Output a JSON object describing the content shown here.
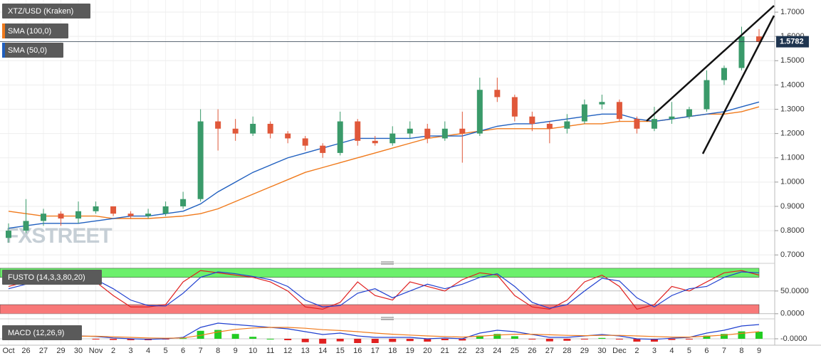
{
  "chart_data": [
    {
      "type": "candlestick",
      "title": "XTZ/USD (Kraken)",
      "watermark": "FXSTREET",
      "categories": [
        "Oct",
        "26",
        "27",
        "29",
        "30",
        "Nov",
        "2",
        "3",
        "4",
        "5",
        "6",
        "7",
        "8",
        "9",
        "10",
        "11",
        "12",
        "13",
        "14",
        "15",
        "16",
        "17",
        "18",
        "19",
        "20",
        "21",
        "22",
        "23",
        "24",
        "25",
        "26",
        "27",
        "28",
        "29",
        "30",
        "Dec",
        "2",
        "3",
        "4",
        "5",
        "6",
        "7",
        "8",
        "9"
      ],
      "open": [
        0.77,
        0.8,
        0.84,
        0.87,
        0.85,
        0.88,
        0.9,
        0.87,
        0.86,
        0.87,
        0.9,
        0.93,
        1.25,
        1.22,
        1.2,
        1.24,
        1.2,
        1.18,
        1.15,
        1.12,
        1.25,
        1.17,
        1.16,
        1.2,
        1.22,
        1.18,
        1.22,
        1.2,
        1.38,
        1.35,
        1.27,
        1.24,
        1.22,
        1.25,
        1.32,
        1.33,
        1.26,
        1.22,
        1.26,
        1.27,
        1.3,
        1.42,
        1.47,
        1.6
      ],
      "high": [
        0.83,
        0.93,
        0.89,
        0.88,
        0.92,
        0.92,
        0.9,
        0.88,
        0.89,
        0.92,
        0.96,
        1.3,
        1.3,
        1.26,
        1.27,
        1.25,
        1.21,
        1.19,
        1.16,
        1.29,
        1.26,
        1.19,
        1.23,
        1.25,
        1.24,
        1.25,
        1.29,
        1.43,
        1.43,
        1.36,
        1.29,
        1.25,
        1.28,
        1.34,
        1.36,
        1.34,
        1.27,
        1.31,
        1.33,
        1.31,
        1.46,
        1.48,
        1.64,
        1.63
      ],
      "low": [
        0.75,
        0.79,
        0.82,
        0.82,
        0.83,
        0.87,
        0.86,
        0.85,
        0.85,
        0.86,
        0.89,
        0.92,
        1.13,
        1.17,
        1.19,
        1.18,
        1.16,
        1.13,
        1.1,
        1.11,
        1.15,
        1.15,
        1.15,
        1.18,
        1.16,
        1.17,
        1.08,
        1.19,
        1.33,
        1.25,
        1.21,
        1.16,
        1.2,
        1.24,
        1.3,
        1.25,
        1.2,
        1.21,
        1.24,
        1.26,
        1.29,
        1.4,
        1.46,
        1.56
      ],
      "close": [
        0.8,
        0.84,
        0.87,
        0.85,
        0.88,
        0.9,
        0.87,
        0.86,
        0.87,
        0.9,
        0.93,
        1.25,
        1.22,
        1.2,
        1.24,
        1.2,
        1.18,
        1.15,
        1.12,
        1.25,
        1.17,
        1.16,
        1.2,
        1.22,
        1.18,
        1.22,
        1.2,
        1.38,
        1.35,
        1.27,
        1.24,
        1.22,
        1.25,
        1.32,
        1.33,
        1.26,
        1.22,
        1.26,
        1.27,
        1.3,
        1.42,
        1.47,
        1.6,
        1.578
      ],
      "up_color": "#3a9a6a",
      "down_color": "#e0583a",
      "series": [
        {
          "name": "SMA (100,0)",
          "color": "#f07a1c",
          "values": [
            0.88,
            0.87,
            0.86,
            0.86,
            0.86,
            0.86,
            0.85,
            0.85,
            0.85,
            0.855,
            0.86,
            0.87,
            0.89,
            0.92,
            0.95,
            0.98,
            1.01,
            1.04,
            1.06,
            1.08,
            1.1,
            1.12,
            1.14,
            1.16,
            1.18,
            1.19,
            1.2,
            1.21,
            1.22,
            1.22,
            1.22,
            1.22,
            1.23,
            1.24,
            1.24,
            1.25,
            1.25,
            1.25,
            1.26,
            1.27,
            1.28,
            1.28,
            1.29,
            1.31
          ]
        },
        {
          "name": "SMA (50,0)",
          "color": "#1f5fbf",
          "values": [
            0.81,
            0.82,
            0.83,
            0.83,
            0.83,
            0.84,
            0.85,
            0.86,
            0.86,
            0.87,
            0.88,
            0.91,
            0.96,
            1.0,
            1.04,
            1.07,
            1.1,
            1.12,
            1.14,
            1.16,
            1.18,
            1.18,
            1.18,
            1.18,
            1.19,
            1.19,
            1.19,
            1.21,
            1.23,
            1.24,
            1.24,
            1.25,
            1.26,
            1.27,
            1.28,
            1.28,
            1.26,
            1.25,
            1.26,
            1.27,
            1.28,
            1.29,
            1.31,
            1.33
          ]
        }
      ],
      "ylim": [
        0.68,
        1.75
      ],
      "yticks": [
        {
          "value": 0.7,
          "label": "0.7000"
        },
        {
          "value": 0.8,
          "label": "0.8000"
        },
        {
          "value": 0.9,
          "label": "0.9000"
        },
        {
          "value": 1.0,
          "label": "1.0000"
        },
        {
          "value": 1.1,
          "label": "1.1000"
        },
        {
          "value": 1.2,
          "label": "1.2000"
        },
        {
          "value": 1.3,
          "label": "1.3000"
        },
        {
          "value": 1.4,
          "label": "1.4000"
        },
        {
          "value": 1.5,
          "label": "1.5000"
        },
        {
          "value": 1.6,
          "label": "1.6000"
        },
        {
          "value": 1.7,
          "label": "1.7000"
        }
      ],
      "last_price": {
        "value": 1.5782,
        "label": "1.5782"
      },
      "grid": true
    },
    {
      "type": "stochastic",
      "title": "FUSTO (14,3,3,80,20)",
      "series": [
        {
          "color": "#e02020",
          "values": [
            60,
            70,
            80,
            75,
            85,
            70,
            40,
            15,
            15,
            20,
            70,
            95,
            90,
            85,
            80,
            70,
            50,
            15,
            10,
            25,
            70,
            40,
            30,
            70,
            60,
            50,
            75,
            90,
            85,
            40,
            15,
            10,
            30,
            70,
            85,
            60,
            10,
            20,
            60,
            50,
            70,
            90,
            95,
            85
          ]
        },
        {
          "color": "#2040d0",
          "values": [
            55,
            65,
            75,
            78,
            80,
            75,
            55,
            30,
            18,
            17,
            45,
            80,
            92,
            88,
            82,
            75,
            60,
            30,
            15,
            18,
            45,
            55,
            35,
            50,
            65,
            55,
            65,
            80,
            88,
            60,
            25,
            12,
            20,
            50,
            78,
            72,
            35,
            15,
            40,
            55,
            60,
            80,
            92,
            90
          ]
        }
      ],
      "bands": [
        {
          "from": 80,
          "to": 100,
          "color": "#6cf06c"
        },
        {
          "from": 0,
          "to": 20,
          "color": "#f87878"
        }
      ],
      "ylim": [
        -5,
        103
      ],
      "yticks": [
        {
          "value": 50,
          "label": "50.0000"
        },
        {
          "value": 0,
          "label": "0.0000"
        }
      ]
    },
    {
      "type": "macd",
      "title": "MACD (12,26,9)",
      "series": [
        {
          "color": "#2040d0",
          "values": [
            0,
            0.005,
            0.01,
            0.01,
            0.01,
            0.008,
            0.003,
            0,
            -0.002,
            0,
            0.005,
            0.04,
            0.055,
            0.05,
            0.045,
            0.04,
            0.035,
            0.025,
            0.015,
            0.02,
            0.01,
            0.005,
            0.005,
            0.005,
            0,
            0.003,
            0,
            0.02,
            0.03,
            0.025,
            0.015,
            0.005,
            0.005,
            0.01,
            0.015,
            0.01,
            0,
            -0.002,
            0.002,
            0.005,
            0.02,
            0.03,
            0.045,
            0.05
          ]
        },
        {
          "color": "#f07a1c",
          "values": [
            0,
            0.002,
            0.005,
            0.007,
            0.009,
            0.009,
            0.007,
            0.005,
            0.003,
            0.002,
            0.003,
            0.012,
            0.024,
            0.033,
            0.038,
            0.04,
            0.04,
            0.037,
            0.032,
            0.029,
            0.025,
            0.02,
            0.016,
            0.013,
            0.01,
            0.008,
            0.006,
            0.009,
            0.013,
            0.016,
            0.016,
            0.014,
            0.012,
            0.011,
            0.012,
            0.012,
            0.01,
            0.008,
            0.006,
            0.006,
            0.009,
            0.013,
            0.019,
            0.025
          ]
        }
      ],
      "histogram_colors": [
        "#22cc22",
        "#e02020"
      ],
      "ylim": [
        -0.02,
        0.06
      ],
      "yticks": [
        {
          "value": 0,
          "label": "-0.0000"
        }
      ]
    }
  ]
}
